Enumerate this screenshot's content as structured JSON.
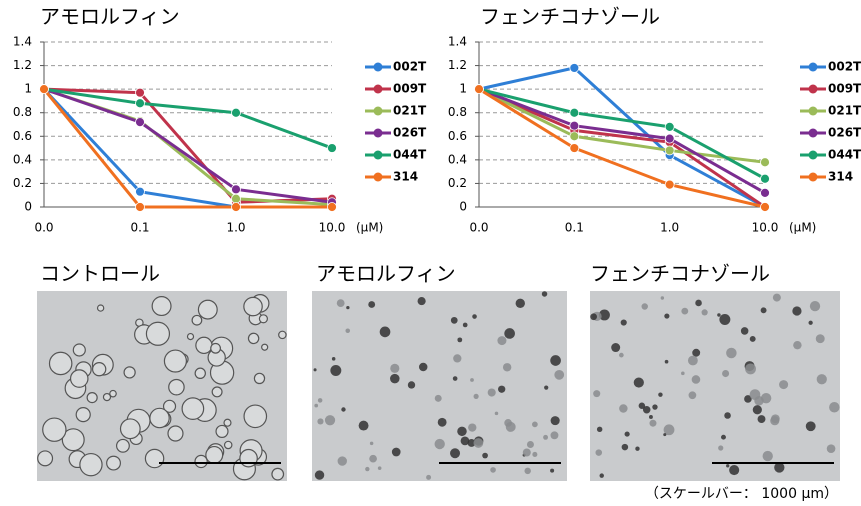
{
  "chart_data": [
    {
      "type": "line",
      "title": "アモロルフィン",
      "x_label": "(μM)",
      "categories": [
        "0.0",
        "0.1",
        "1.0",
        "10.0"
      ],
      "ylim": [
        0,
        1.4
      ],
      "yticks": [
        0,
        0.2,
        0.4,
        0.6,
        0.8,
        1,
        1.2,
        1.4
      ],
      "grid": true,
      "legend": "right",
      "series": [
        {
          "name": "002T",
          "color": "#2f7fd6",
          "values": [
            1,
            0.13,
            0,
            0
          ]
        },
        {
          "name": "009T",
          "color": "#c0334b",
          "values": [
            1,
            0.97,
            0.04,
            0.07
          ]
        },
        {
          "name": "021T",
          "color": "#9bbb59",
          "values": [
            1,
            0.73,
            0.07,
            0.02
          ]
        },
        {
          "name": "026T",
          "color": "#7a2d90",
          "values": [
            1,
            0.72,
            0.15,
            0.04
          ]
        },
        {
          "name": "044T",
          "color": "#1aa06e",
          "values": [
            1,
            0.88,
            0.8,
            0.5
          ]
        },
        {
          "name": "314",
          "color": "#f07020",
          "values": [
            1,
            0,
            0,
            0
          ]
        }
      ]
    },
    {
      "type": "line",
      "title": "フェンチコナゾール",
      "x_label": "(μM)",
      "categories": [
        "0.0",
        "0.1",
        "1.0",
        "10.0"
      ],
      "ylim": [
        0,
        1.4
      ],
      "yticks": [
        0,
        0.2,
        0.4,
        0.6,
        0.8,
        1,
        1.2,
        1.4
      ],
      "grid": true,
      "legend": "right",
      "series": [
        {
          "name": "002T",
          "color": "#2f7fd6",
          "values": [
            1,
            1.18,
            0.44,
            0
          ]
        },
        {
          "name": "009T",
          "color": "#c0334b",
          "values": [
            1,
            0.65,
            0.55,
            0
          ]
        },
        {
          "name": "021T",
          "color": "#9bbb59",
          "values": [
            1,
            0.6,
            0.48,
            0.38
          ]
        },
        {
          "name": "026T",
          "color": "#7a2d90",
          "values": [
            1,
            0.69,
            0.58,
            0.12
          ]
        },
        {
          "name": "044T",
          "color": "#1aa06e",
          "values": [
            1,
            0.8,
            0.68,
            0.24
          ]
        },
        {
          "name": "314",
          "color": "#f07020",
          "values": [
            1,
            0.5,
            0.19,
            0
          ]
        }
      ]
    }
  ],
  "images": [
    {
      "label": "コントロール"
    },
    {
      "label": "アモロルフィン"
    },
    {
      "label": "フェンチコナゾール"
    }
  ],
  "scale_note": "（スケールバー： 1000 μm）"
}
